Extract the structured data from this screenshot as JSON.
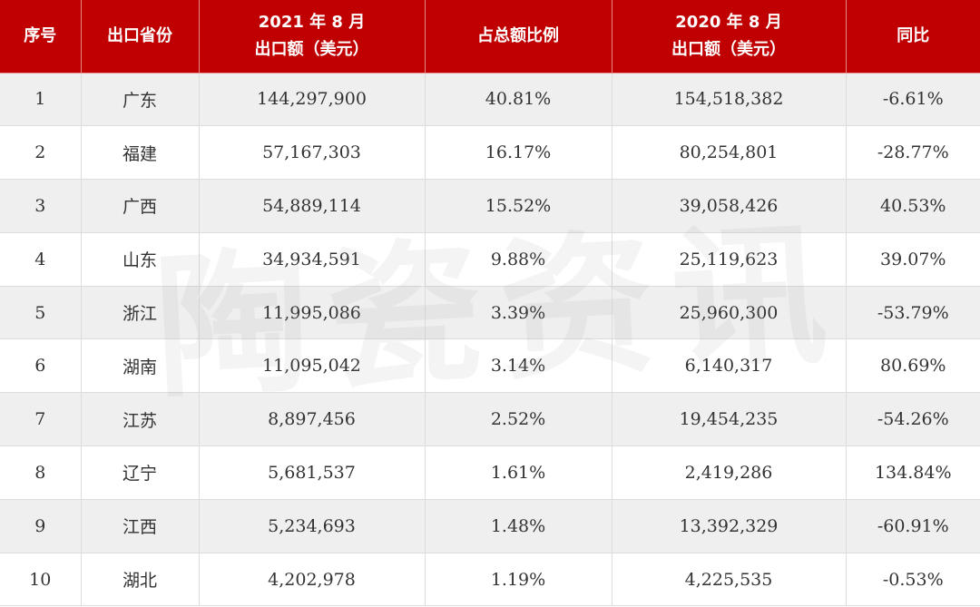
{
  "table": {
    "headers": [
      {
        "lines": [
          "序号"
        ]
      },
      {
        "lines": [
          "出口省份"
        ]
      },
      {
        "lines": [
          "2021 年 8 月",
          "出口额（美元）"
        ]
      },
      {
        "lines": [
          "占总额比例"
        ]
      },
      {
        "lines": [
          "2020 年 8 月",
          "出口额（美元）"
        ]
      },
      {
        "lines": [
          "同比"
        ]
      }
    ],
    "rows": [
      [
        "1",
        "广东",
        "144,297,900",
        "40.81%",
        "154,518,382",
        "-6.61%"
      ],
      [
        "2",
        "福建",
        "57,167,303",
        "16.17%",
        "80,254,801",
        "-28.77%"
      ],
      [
        "3",
        "广西",
        "54,889,114",
        "15.52%",
        "39,058,426",
        "40.53%"
      ],
      [
        "4",
        "山东",
        "34,934,591",
        "9.88%",
        "25,119,623",
        "39.07%"
      ],
      [
        "5",
        "浙江",
        "11,995,086",
        "3.39%",
        "25,960,300",
        "-53.79%"
      ],
      [
        "6",
        "湖南",
        "11,095,042",
        "3.14%",
        "6,140,317",
        "80.69%"
      ],
      [
        "7",
        "江苏",
        "8,897,456",
        "2.52%",
        "19,454,235",
        "-54.26%"
      ],
      [
        "8",
        "辽宁",
        "5,681,537",
        "1.61%",
        "2,419,286",
        "134.84%"
      ],
      [
        "9",
        "江西",
        "5,234,693",
        "1.48%",
        "13,392,329",
        "-60.91%"
      ],
      [
        "10",
        "湖北",
        "4,202,978",
        "1.19%",
        "4,225,535",
        "-0.53%"
      ]
    ]
  },
  "watermark": "陶瓷资讯",
  "colors": {
    "header_bg": "#c00000",
    "header_text": "#ffffff",
    "row_alt_bg": "#efefef"
  }
}
